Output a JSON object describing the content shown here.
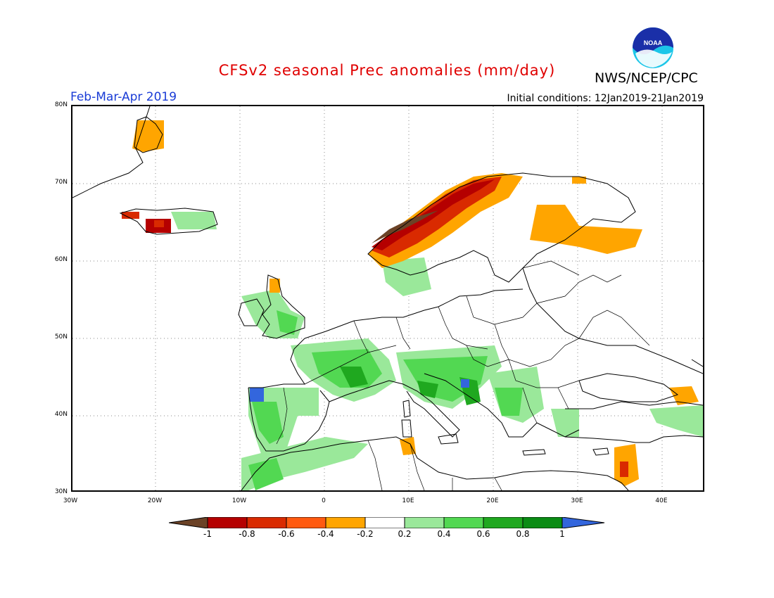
{
  "header": {
    "title": "CFSv2 seasonal Prec anomalies (mm/day)",
    "agency": "NWS/NCEP/CPC",
    "season": "Feb-Mar-Apr 2019",
    "initial_conditions": "Initial conditions: 12Jan2019-21Jan2019",
    "logo_text": "NOAA"
  },
  "axes": {
    "lat_labels": [
      "80N",
      "70N",
      "60N",
      "50N",
      "40N",
      "30N"
    ],
    "lon_labels": [
      "30W",
      "20W",
      "10W",
      "0",
      "10E",
      "20E",
      "30E",
      "40E"
    ]
  },
  "colorbar": {
    "labels": [
      "-1",
      "-0.8",
      "-0.6",
      "-0.4",
      "-0.2",
      "0.2",
      "0.4",
      "0.6",
      "0.8",
      "1"
    ],
    "colors": [
      "#6b4226",
      "#b50000",
      "#d92a00",
      "#ff5a10",
      "#ffa500",
      "#ffffff",
      "#9ae89a",
      "#52d852",
      "#1fa81f",
      "#0a8c14",
      "#3366dd"
    ]
  },
  "colors": {
    "title": "#e00000",
    "season": "#1a3cd6"
  }
}
